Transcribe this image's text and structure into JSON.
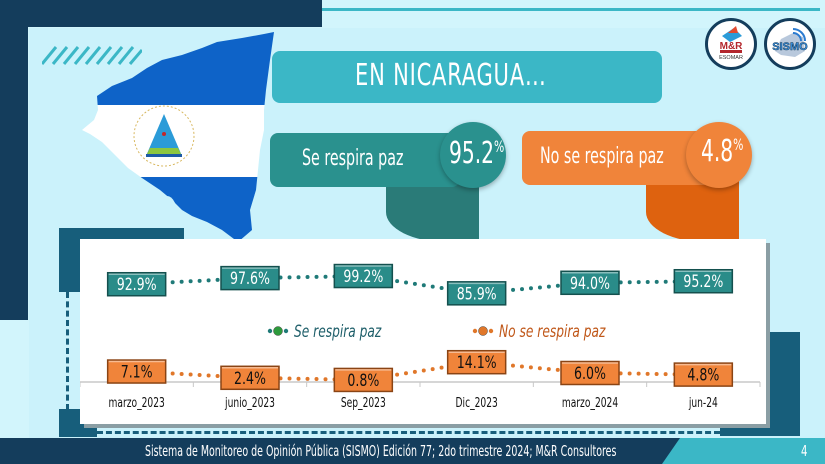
{
  "header": {
    "title": "EN NICARAGUA…",
    "logos": [
      {
        "name": "mr-consultores-logo",
        "text": "M&R Consultores",
        "subtext": "ESOMAR member"
      },
      {
        "name": "sismo-logo",
        "text": "SISMO"
      }
    ]
  },
  "flag": {
    "seal_top_text": "REPUBLICA DE NICARAGUA",
    "seal_bottom_text": "AMERICA CENTRAL"
  },
  "summary": {
    "paz": {
      "label": "Se respira paz",
      "value": "95.2",
      "unit": "%",
      "color": "#2a918e"
    },
    "nopaz": {
      "label": "No se respira paz",
      "value": "4.8",
      "unit": "%",
      "color": "#f0843a"
    }
  },
  "chart_data": {
    "type": "line",
    "title": "",
    "xlabel": "",
    "ylabel": "",
    "categories": [
      "marzo_2023",
      "junio_2023",
      "Sep_2023",
      "Dic_2023",
      "marzo_2024",
      "jun-24"
    ],
    "series": [
      {
        "name": "Se respira paz",
        "values": [
          92.9,
          97.6,
          99.2,
          85.9,
          94.0,
          95.2
        ],
        "labels": [
          "92.9%",
          "97.6%",
          "99.2%",
          "85.9%",
          "94.0%",
          "95.2%"
        ],
        "color": "#1f7a78",
        "line_style": "dotted"
      },
      {
        "name": "No se respira paz",
        "values": [
          7.1,
          2.4,
          0.8,
          14.1,
          6.0,
          4.8
        ],
        "labels": [
          "7.1%",
          "2.4%",
          "0.8%",
          "14.1%",
          "6.0%",
          "4.8%"
        ],
        "color": "#e0772a",
        "line_style": "dotted"
      }
    ],
    "legend_position": "middle",
    "grid": false
  },
  "footer": {
    "text": "Sistema de Monitoreo de Opinión Pública (SISMO) Edición 77; 2do trimestre 2024; M&R Consultores",
    "page_number": "4"
  }
}
